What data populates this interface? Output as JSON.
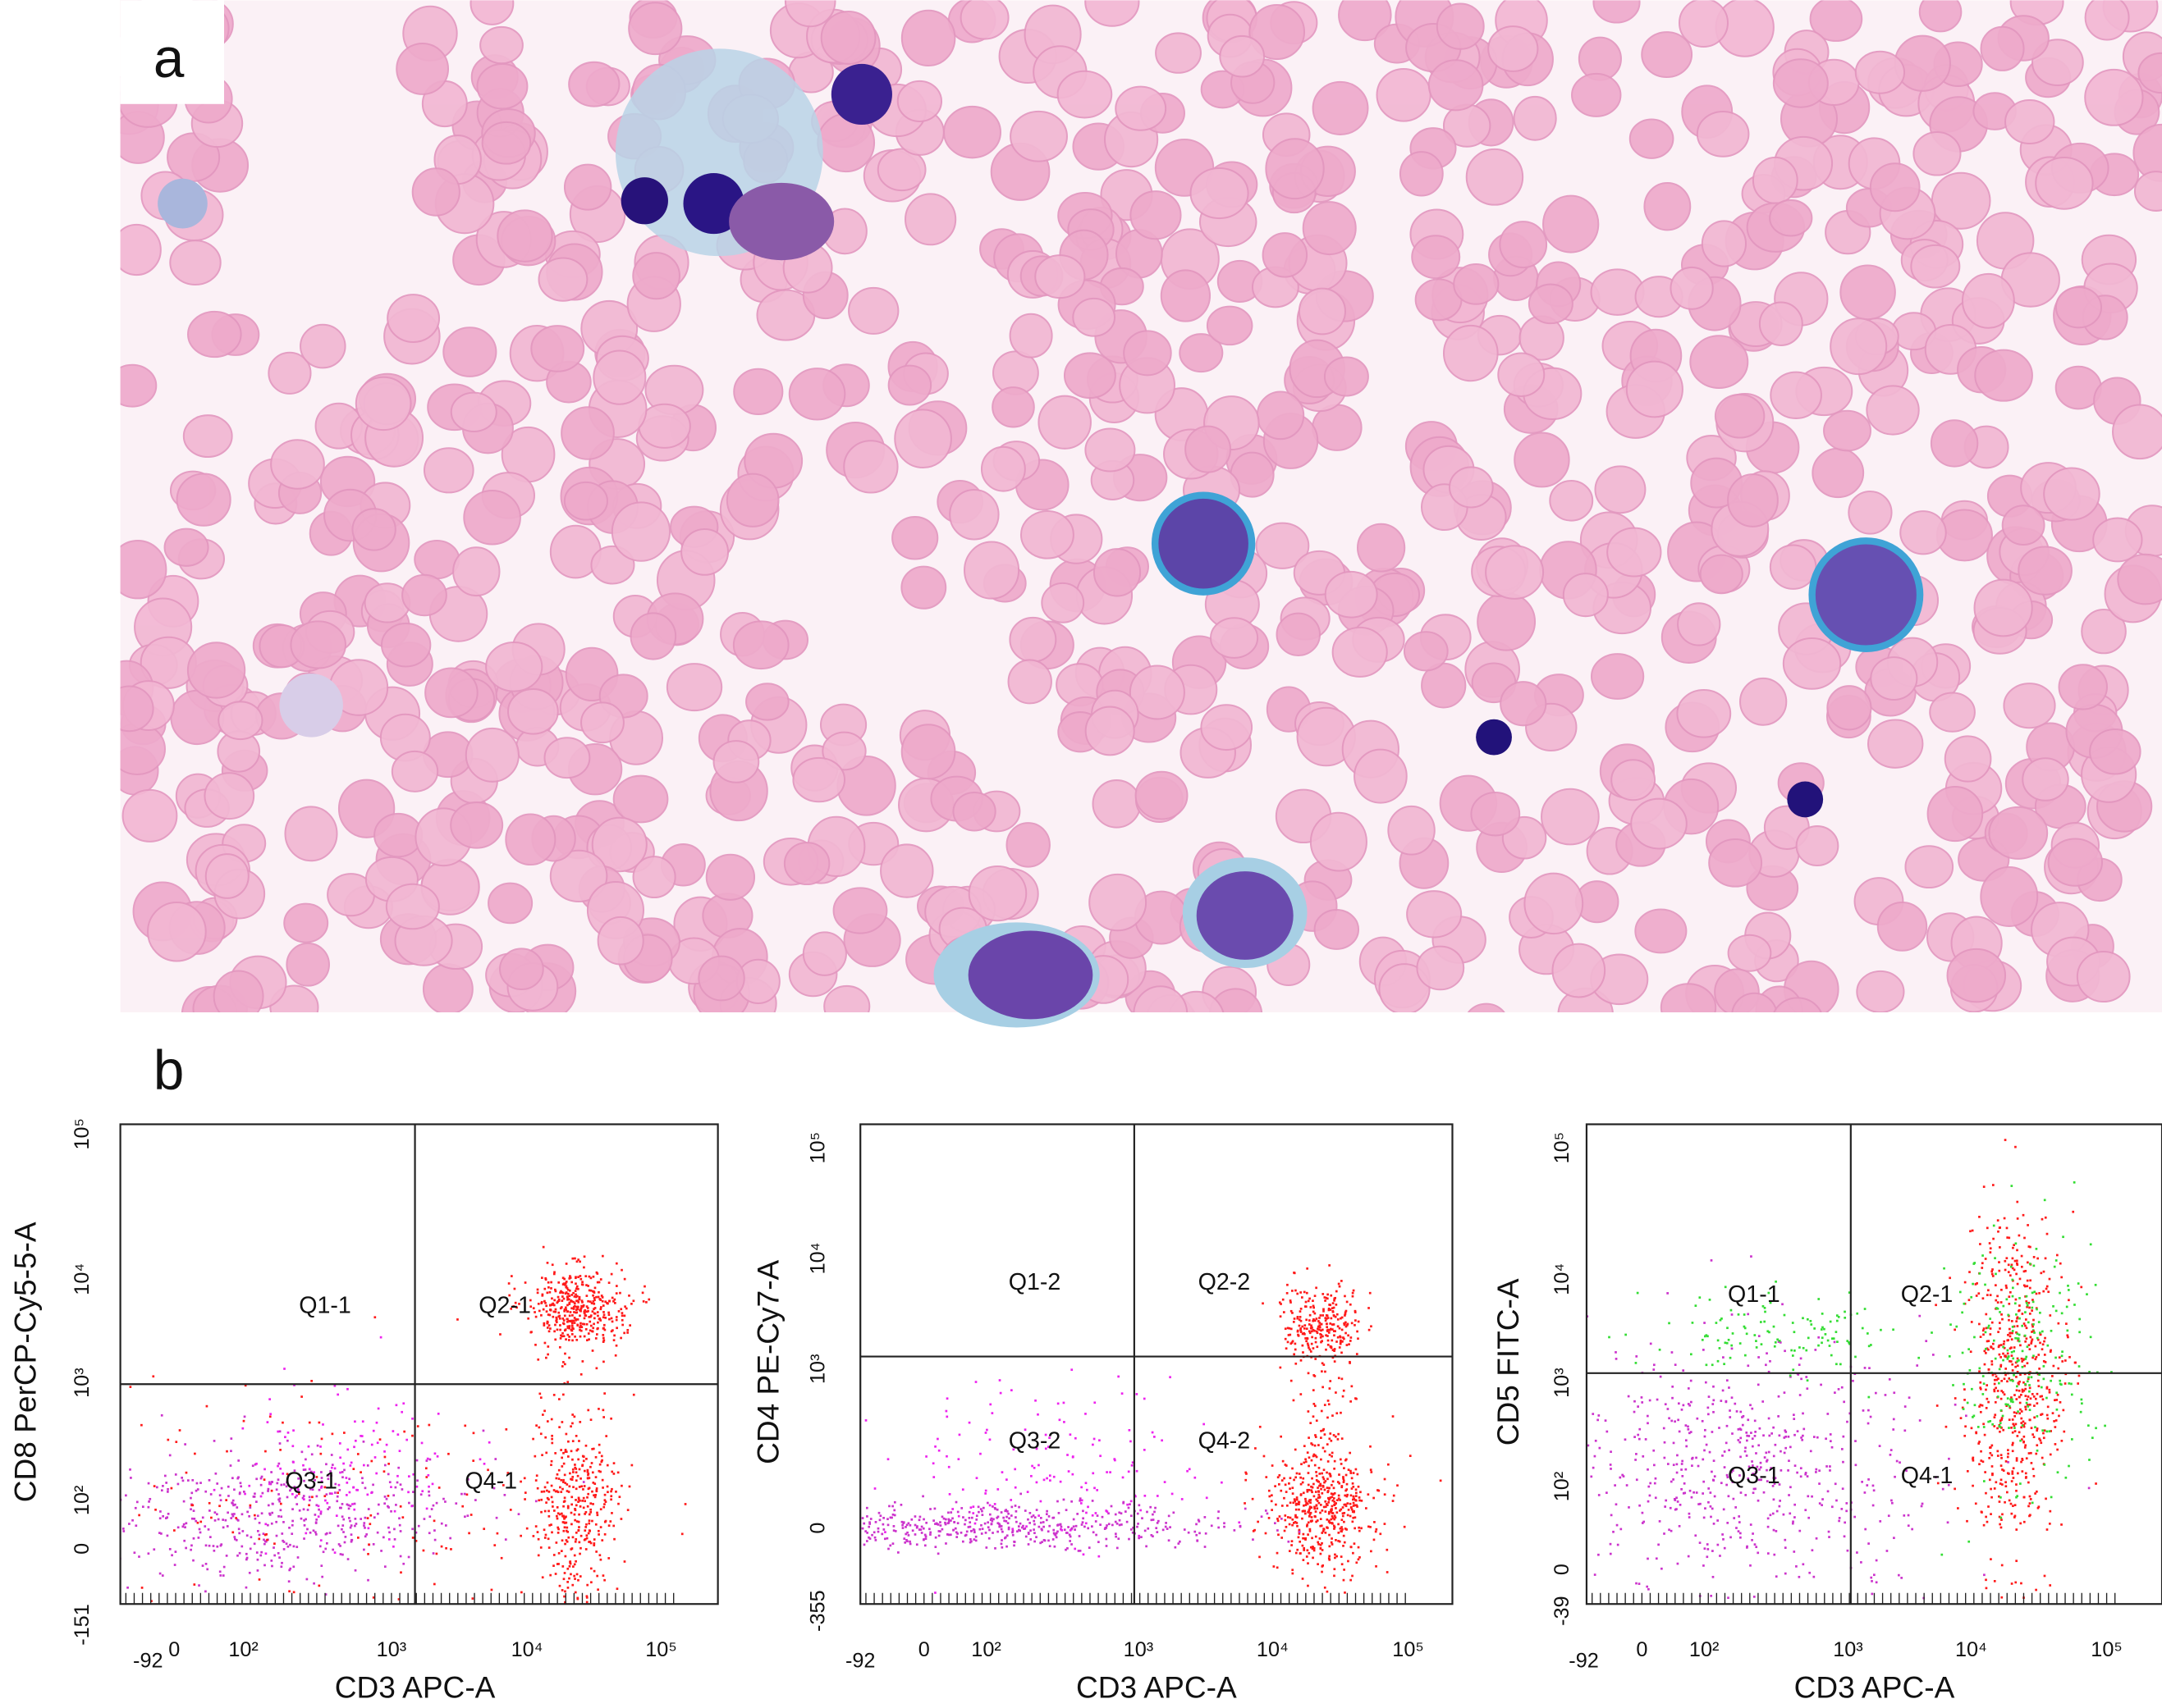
{
  "panels": [
    "a",
    "b"
  ],
  "plots": [
    {
      "y_axis_title": "CD8 PerCP-Cy5-5-A",
      "x_axis_title": "CD3 APC-A",
      "y_tick_labels": [
        "10⁵",
        "10⁴",
        "10³",
        "10²",
        "0",
        "-151"
      ],
      "x_tick_labels": [
        "-92",
        "0",
        "10²",
        "10³",
        "10⁴",
        "10⁵"
      ],
      "quadrants": [
        "Q1-1",
        "Q2-1",
        "Q3-1",
        "Q4-1"
      ]
    },
    {
      "y_axis_title": "CD4 PE-Cy7-A",
      "x_axis_title": "CD3 APC-A",
      "y_tick_labels": [
        "10⁵",
        "10⁴",
        "10³",
        "0",
        "-355"
      ],
      "x_tick_labels": [
        "-92",
        "0",
        "10²",
        "10³",
        "10⁴",
        "10⁵"
      ],
      "quadrants": [
        "Q1-2",
        "Q2-2",
        "Q3-2",
        "Q4-2"
      ]
    },
    {
      "y_axis_title": "CD5 FITC-A",
      "x_axis_title": "CD3 APC-A",
      "y_tick_labels": [
        "10⁵",
        "10⁴",
        "10³",
        "10²",
        "0",
        "-39"
      ],
      "x_tick_labels": [
        "-92",
        "0",
        "10²",
        "10³",
        "10⁴",
        "10⁵"
      ],
      "quadrants": [
        "Q1-1",
        "Q2-1",
        "Q3-1",
        "Q4-1"
      ]
    }
  ]
}
